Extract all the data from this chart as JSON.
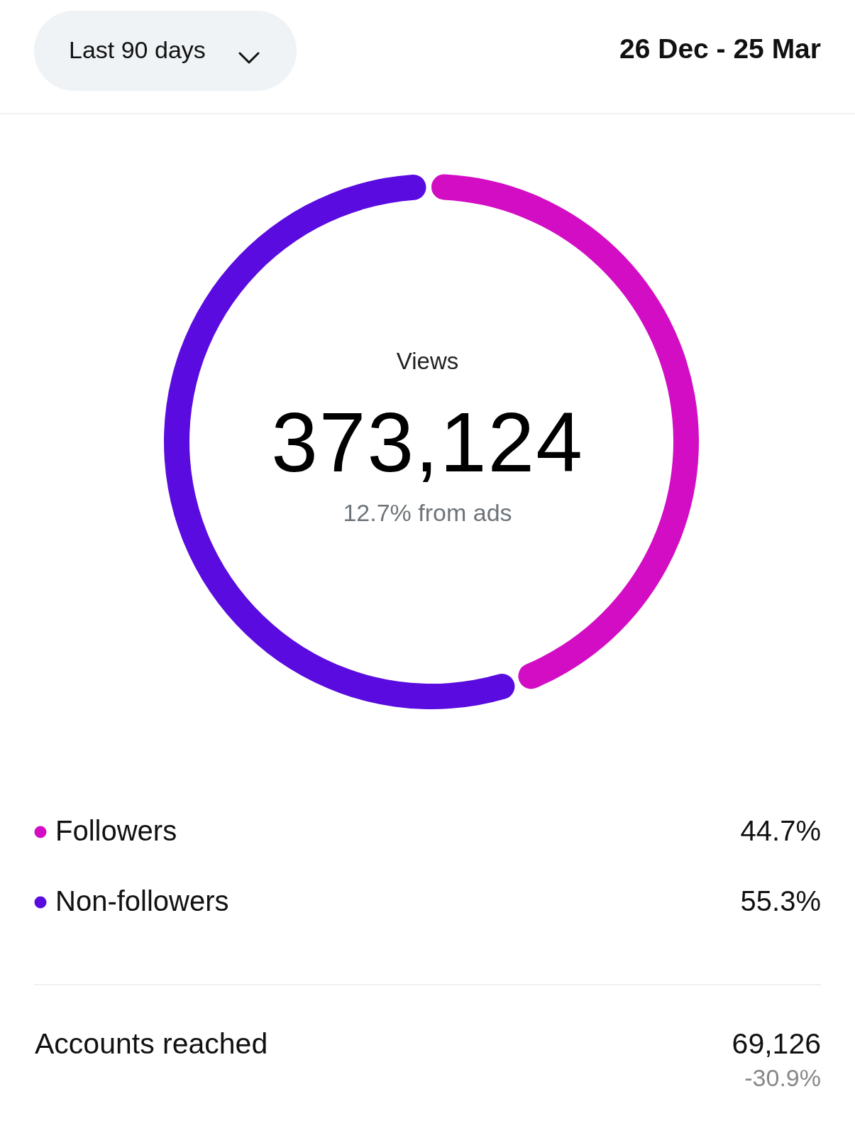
{
  "chart_data": {
    "type": "donut",
    "title": "Views",
    "categories": [
      "Followers",
      "Non-followers"
    ],
    "values": [
      44.7,
      55.3
    ],
    "colors": [
      "#d30dc4",
      "#5a0bdf"
    ],
    "value_labels": [
      "44.7%",
      "55.3%"
    ],
    "legend": "bottom",
    "annotations": [
      "Last 90 days",
      "26 Dec - 25 Mar",
      "373,124",
      "12.7% from ads",
      "Accounts reached",
      "69,126",
      "-30.9%"
    ]
  }
}
